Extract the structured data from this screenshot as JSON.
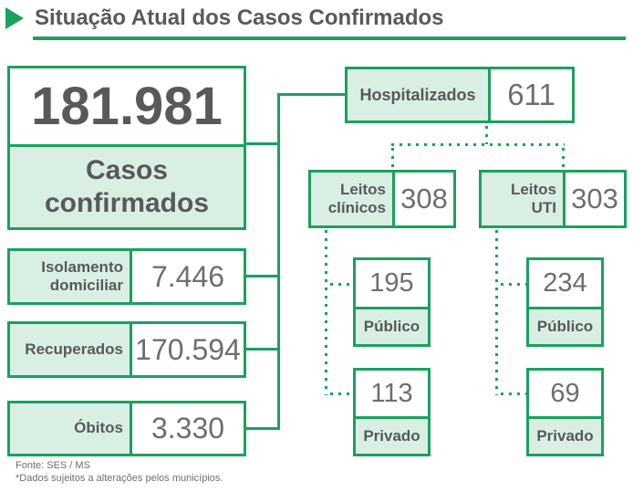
{
  "title": "Situação Atual dos Casos Confirmados",
  "colors": {
    "green": "#1aa15e",
    "mint": "#d9efe3",
    "ink": "#58595b",
    "num": "#6d6e71"
  },
  "summary": {
    "value": "181.981",
    "label": "Casos\nconfirmados"
  },
  "left_stats": [
    {
      "label": "Isolamento\ndomiciliar",
      "value": "7.446"
    },
    {
      "label": "Recuperados",
      "value": "170.594"
    },
    {
      "label": "Óbitos",
      "value": "3.330"
    }
  ],
  "hospitalized": {
    "label": "Hospitalizados",
    "value": "611"
  },
  "beds": [
    {
      "label": "Leitos\nclínicos",
      "value": "308",
      "breakdown": [
        {
          "label": "Público",
          "value": "195"
        },
        {
          "label": "Privado",
          "value": "113"
        }
      ]
    },
    {
      "label": "Leitos\nUTI",
      "value": "303",
      "breakdown": [
        {
          "label": "Público",
          "value": "234"
        },
        {
          "label": "Privado",
          "value": "69"
        }
      ]
    }
  ],
  "footer": {
    "source": "Fonte: SES / MS",
    "note": "*Dados sujeitos a alterações pelos municípios."
  }
}
